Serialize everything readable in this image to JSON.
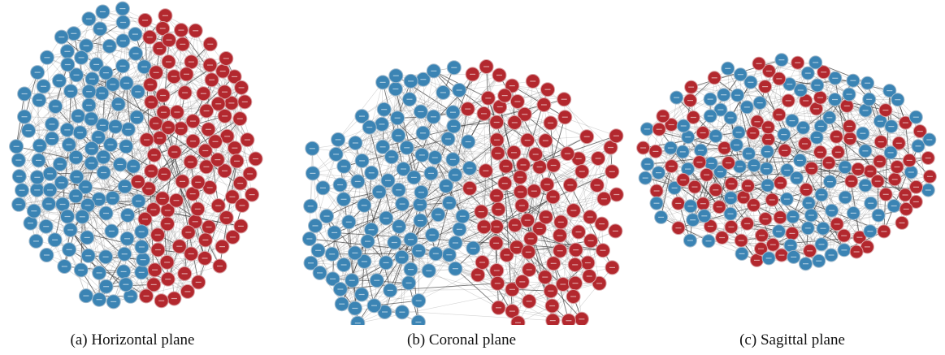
{
  "figure": {
    "panels": [
      {
        "id": "horizontal",
        "caption": "(a) Horizontal plane"
      },
      {
        "id": "coronal",
        "caption": "(b) Coronal plane"
      },
      {
        "id": "sagittal",
        "caption": "(c) Sagittal plane"
      }
    ],
    "colors": {
      "left_hemisphere": "#3b84b4",
      "right_hemisphere": "#b3282e",
      "edge": "#666666",
      "node_stroke": "#9fb9cc"
    }
  }
}
